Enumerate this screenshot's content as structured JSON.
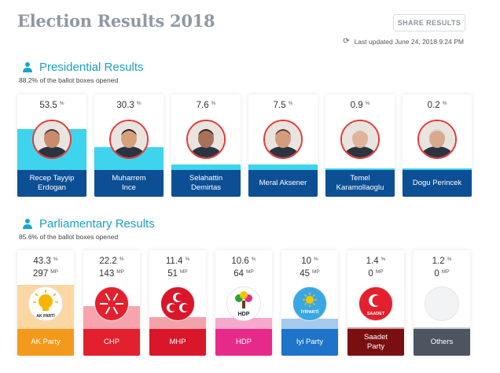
{
  "header": {
    "title": "Election Results 2018",
    "share_label": "SHARE RESULTS",
    "updated": "Last updated June 24, 2018 9:24 PM"
  },
  "presidential": {
    "title": "Presidential Results",
    "subtitle": "88.2% of the ballot boxes opened",
    "unit": "%",
    "candidates": [
      {
        "name": "Recep Tayyip Erdogan",
        "line1": "Recep Tayyip",
        "line2": "Erdogan",
        "value": "53.5",
        "share": 53.5
      },
      {
        "name": "Muharrem Ince",
        "line1": "Muharrem",
        "line2": "Ince",
        "value": "30.3",
        "share": 30.3
      },
      {
        "name": "Selahattin Demirtas",
        "line1": "Selahattin",
        "line2": "Demirtas",
        "value": "7.6",
        "share": 7.6
      },
      {
        "name": "Meral Aksener",
        "line1": "Meral Aksener",
        "line2": "",
        "value": "7.5",
        "share": 7.5
      },
      {
        "name": "Temel Karamollaoglu",
        "line1": "Temel",
        "line2": "Karamollaoglu",
        "value": "0.9",
        "share": 0.9
      },
      {
        "name": "Dogu Perincek",
        "line1": "Dogu Perincek",
        "line2": "",
        "value": "0.2",
        "share": 0.2
      }
    ],
    "colors": {
      "footer": "#0d4f94",
      "fill": "#3fd4ee"
    }
  },
  "parliamentary": {
    "title": "Parliamentary Results",
    "subtitle": "85.6% of the ballot boxes opened",
    "pct_unit": "%",
    "mp_unit": "MP",
    "parties": [
      {
        "name": "AK Party",
        "line1": "AK Party",
        "line2": "",
        "pct": "43.3",
        "mp": "297",
        "share": 43.3,
        "logo_text": "AK PARTİ",
        "color": "#f39a1d",
        "fill": "#fbd7a4"
      },
      {
        "name": "CHP",
        "line1": "CHP",
        "line2": "",
        "pct": "22.2",
        "mp": "143",
        "share": 22.2,
        "logo_text": "",
        "color": "#e3202d",
        "fill": "#f7a5ab"
      },
      {
        "name": "MHP",
        "line1": "MHP",
        "line2": "",
        "pct": "11.4",
        "mp": "51",
        "share": 11.4,
        "logo_text": "",
        "color": "#d9162a",
        "fill": "#f3a2aa"
      },
      {
        "name": "HDP",
        "line1": "HDP",
        "line2": "",
        "pct": "10.6",
        "mp": "64",
        "share": 10.6,
        "logo_text": "HDP",
        "color": "#e72a8a",
        "fill": "#f6a8cf"
      },
      {
        "name": "Iyi Party",
        "line1": "Iyi Party",
        "line2": "",
        "pct": "10",
        "mp": "45",
        "share": 10,
        "logo_text": "İYİPARTİ",
        "color": "#1d74c9",
        "fill": "#a6c9ee"
      },
      {
        "name": "Saadet Party",
        "line1": "Saadet",
        "line2": "Party",
        "pct": "1.4",
        "mp": "0",
        "share": 1.4,
        "logo_text": "SAADET",
        "color": "#7a0f12",
        "fill": "#d5a0a1"
      },
      {
        "name": "Others",
        "line1": "Others",
        "line2": "",
        "pct": "1.2",
        "mp": "0",
        "share": 1.2,
        "logo_text": "",
        "color": "#4c5560",
        "fill": "#c9ced4"
      }
    ]
  }
}
